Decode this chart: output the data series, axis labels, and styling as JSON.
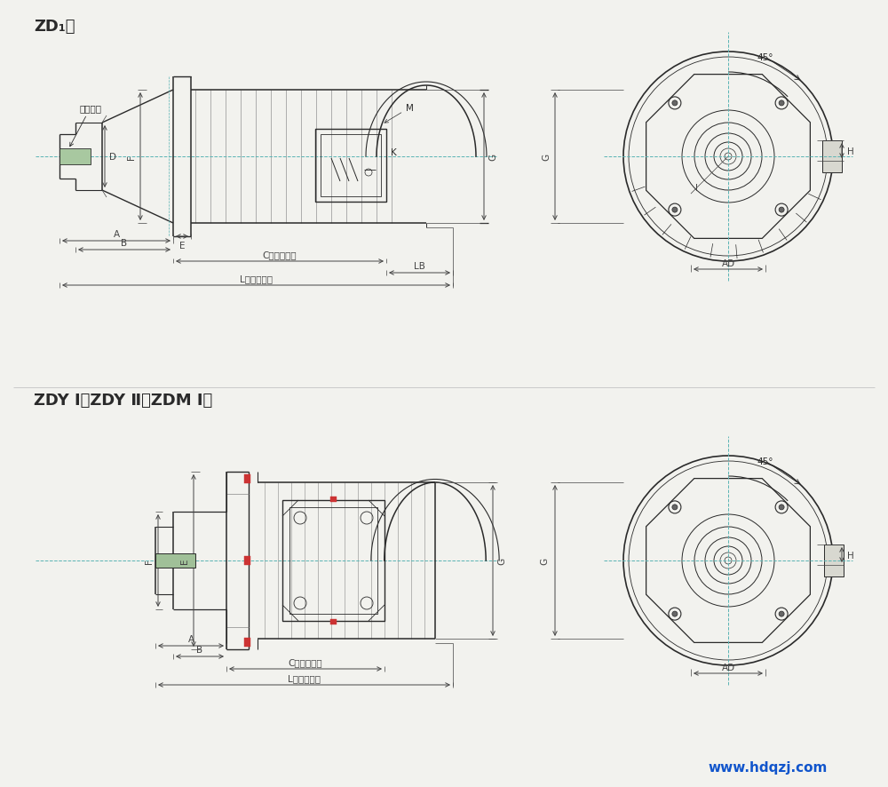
{
  "bg_color": "#f2f2ee",
  "line_color": "#2a2a2a",
  "dim_color": "#444444",
  "cyan_color": "#5ab4b4",
  "watermark_color": "#1155cc",
  "title1": "ZD₁型",
  "title2": "ZDY Ⅰ 、ZDY Ⅱ 、ZDM Ⅰ 型",
  "watermark": "www.hdqzj.com",
  "fig_width": 10.0,
  "fig_height": 8.87
}
